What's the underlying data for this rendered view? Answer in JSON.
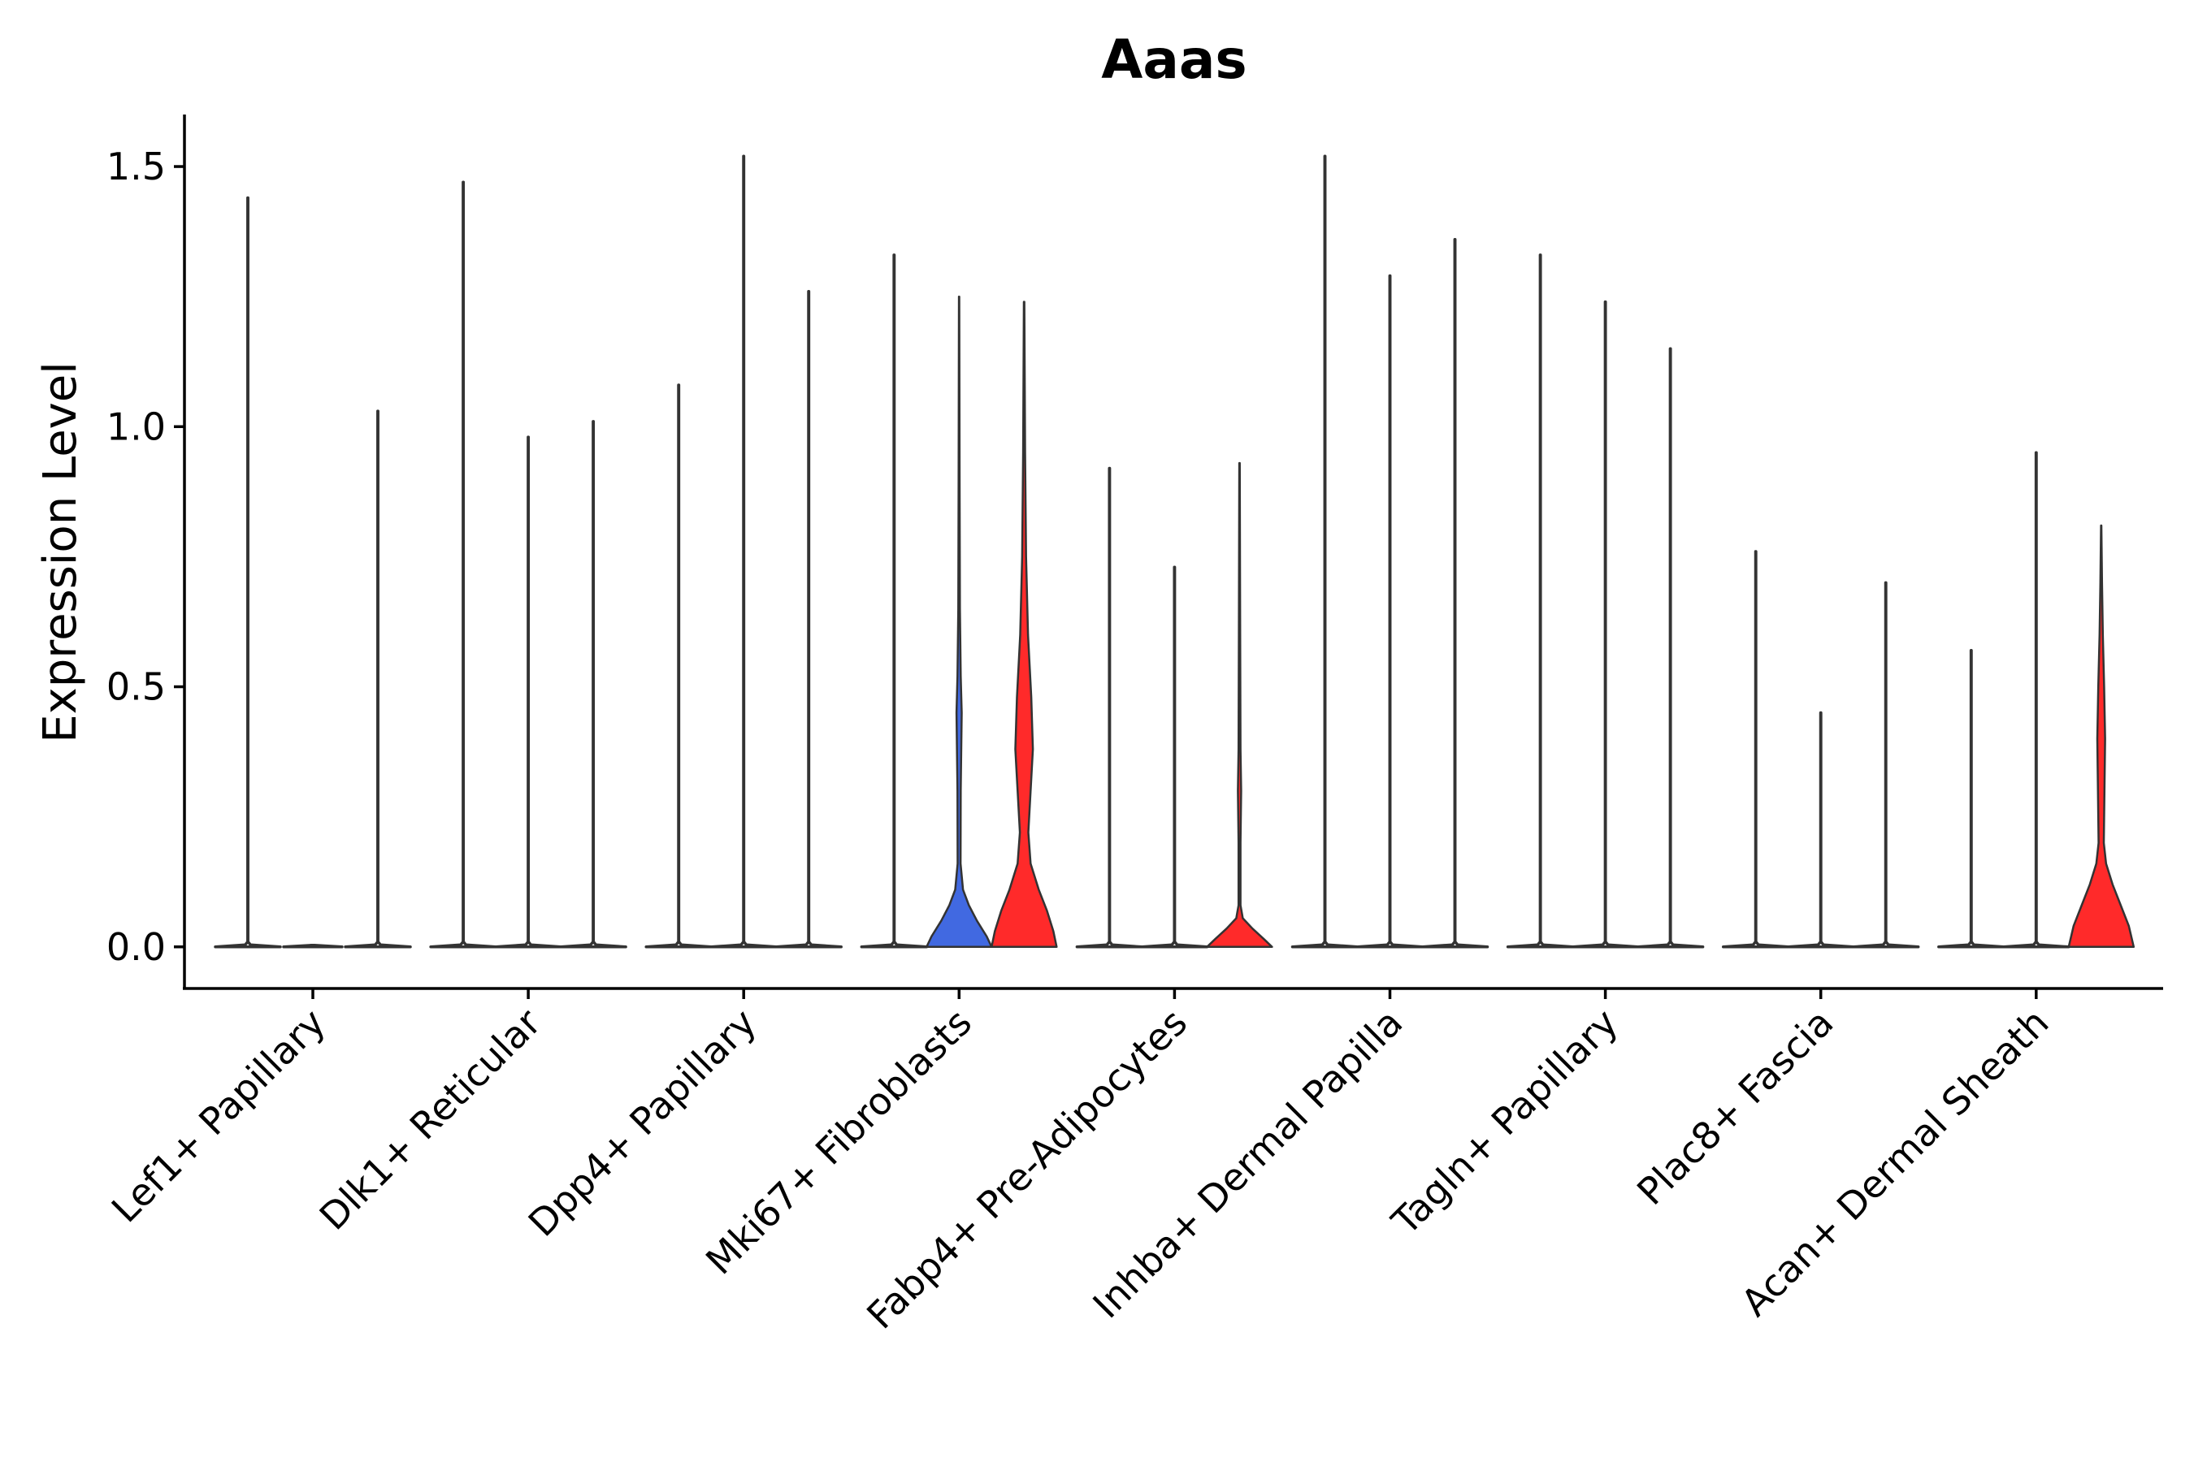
{
  "chart_data": {
    "type": "violin",
    "title": "Aaas",
    "ylabel": "Expression Level",
    "xlabel": "",
    "ylim": [
      -0.08,
      1.6
    ],
    "yticks": [
      0.0,
      0.5,
      1.0,
      1.5
    ],
    "ytick_labels": [
      "0.0",
      "0.5",
      "1.0",
      "1.5"
    ],
    "colors": {
      "axis": "#000000",
      "violin_stroke": "#333333",
      "blue_fill": "#4169E1",
      "red_fill": "#FF2A2A"
    },
    "categories": [
      "Lef1+ Papillary",
      "Dlk1+ Reticular",
      "Dpp4+ Papillary",
      "Mki67+ Fibroblasts",
      "Fabp4+ Pre-Adipocytes",
      "Inhba+ Dermal Papilla",
      "Tagln+ Papillary",
      "Plac8+ Fascia",
      "Acan+ Dermal Sheath"
    ],
    "groups": [
      {
        "category": "Lef1+ Papillary",
        "violins": [
          {
            "fill": "#FFFFFF",
            "max": 1.44,
            "profile": [
              [
                0,
                1.0
              ],
              [
                0.004,
                0.08
              ],
              [
                0.01,
                0.006
              ],
              [
                1.44,
                0.006
              ]
            ]
          },
          {
            "fill": "#FFFFFF",
            "max": 0.0,
            "profile": [
              [
                0,
                0.9
              ],
              [
                0.003,
                0.05
              ]
            ]
          },
          {
            "fill": "#FFFFFF",
            "max": 1.03,
            "profile": [
              [
                0,
                1.0
              ],
              [
                0.004,
                0.08
              ],
              [
                0.01,
                0.006
              ],
              [
                1.03,
                0.006
              ]
            ]
          }
        ]
      },
      {
        "category": "Dlk1+ Reticular",
        "violins": [
          {
            "fill": "#FFFFFF",
            "max": 1.47,
            "profile": [
              [
                0,
                1.0
              ],
              [
                0.004,
                0.08
              ],
              [
                0.01,
                0.006
              ],
              [
                1.47,
                0.006
              ]
            ]
          },
          {
            "fill": "#FFFFFF",
            "max": 0.98,
            "profile": [
              [
                0,
                1.0
              ],
              [
                0.004,
                0.08
              ],
              [
                0.01,
                0.006
              ],
              [
                0.98,
                0.006
              ]
            ]
          },
          {
            "fill": "#FFFFFF",
            "max": 1.01,
            "profile": [
              [
                0,
                1.0
              ],
              [
                0.004,
                0.08
              ],
              [
                0.01,
                0.006
              ],
              [
                1.01,
                0.006
              ]
            ]
          }
        ]
      },
      {
        "category": "Dpp4+ Papillary",
        "violins": [
          {
            "fill": "#FFFFFF",
            "max": 1.08,
            "profile": [
              [
                0,
                1.0
              ],
              [
                0.004,
                0.08
              ],
              [
                0.01,
                0.006
              ],
              [
                1.08,
                0.006
              ]
            ]
          },
          {
            "fill": "#FFFFFF",
            "max": 1.52,
            "profile": [
              [
                0,
                1.0
              ],
              [
                0.004,
                0.08
              ],
              [
                0.01,
                0.006
              ],
              [
                1.52,
                0.006
              ]
            ]
          },
          {
            "fill": "#FFFFFF",
            "max": 1.26,
            "profile": [
              [
                0,
                1.0
              ],
              [
                0.004,
                0.08
              ],
              [
                0.01,
                0.006
              ],
              [
                1.26,
                0.006
              ]
            ]
          }
        ]
      },
      {
        "category": "Mki67+ Fibroblasts",
        "violins": [
          {
            "fill": "#FFFFFF",
            "max": 1.33,
            "profile": [
              [
                0,
                1.0
              ],
              [
                0.004,
                0.08
              ],
              [
                0.01,
                0.006
              ],
              [
                1.33,
                0.006
              ]
            ]
          },
          {
            "fill": "#4169E1",
            "max": 1.25,
            "profile": [
              [
                0,
                1.0
              ],
              [
                0.02,
                0.85
              ],
              [
                0.05,
                0.55
              ],
              [
                0.08,
                0.3
              ],
              [
                0.11,
                0.12
              ],
              [
                0.16,
                0.045
              ],
              [
                0.3,
                0.05
              ],
              [
                0.45,
                0.08
              ],
              [
                0.52,
                0.05
              ],
              [
                0.65,
                0.025
              ],
              [
                0.9,
                0.015
              ],
              [
                1.25,
                0.006
              ]
            ]
          },
          {
            "fill": "#FF2A2A",
            "max": 1.24,
            "profile": [
              [
                0,
                1.0
              ],
              [
                0.03,
                0.9
              ],
              [
                0.07,
                0.7
              ],
              [
                0.11,
                0.45
              ],
              [
                0.16,
                0.2
              ],
              [
                0.22,
                0.13
              ],
              [
                0.3,
                0.2
              ],
              [
                0.38,
                0.27
              ],
              [
                0.48,
                0.22
              ],
              [
                0.6,
                0.12
              ],
              [
                0.75,
                0.06
              ],
              [
                0.95,
                0.03
              ],
              [
                1.24,
                0.008
              ]
            ]
          }
        ]
      },
      {
        "category": "Fabp4+ Pre-Adipocytes",
        "violins": [
          {
            "fill": "#FFFFFF",
            "max": 0.92,
            "profile": [
              [
                0,
                1.0
              ],
              [
                0.004,
                0.08
              ],
              [
                0.01,
                0.006
              ],
              [
                0.92,
                0.006
              ]
            ]
          },
          {
            "fill": "#FFFFFF",
            "max": 0.73,
            "profile": [
              [
                0,
                1.0
              ],
              [
                0.004,
                0.08
              ],
              [
                0.01,
                0.006
              ],
              [
                0.73,
                0.006
              ]
            ]
          },
          {
            "fill": "#FF2A2A",
            "max": 0.93,
            "profile": [
              [
                0,
                1.0
              ],
              [
                0.015,
                0.75
              ],
              [
                0.035,
                0.4
              ],
              [
                0.055,
                0.1
              ],
              [
                0.08,
                0.03
              ],
              [
                0.2,
                0.03
              ],
              [
                0.3,
                0.05
              ],
              [
                0.38,
                0.03
              ],
              [
                0.6,
                0.02
              ],
              [
                0.93,
                0.008
              ]
            ]
          }
        ]
      },
      {
        "category": "Inhba+ Dermal Papilla",
        "violins": [
          {
            "fill": "#FFFFFF",
            "max": 1.52,
            "profile": [
              [
                0,
                1.0
              ],
              [
                0.004,
                0.08
              ],
              [
                0.01,
                0.006
              ],
              [
                1.52,
                0.006
              ]
            ]
          },
          {
            "fill": "#FFFFFF",
            "max": 1.29,
            "profile": [
              [
                0,
                1.0
              ],
              [
                0.004,
                0.08
              ],
              [
                0.01,
                0.006
              ],
              [
                1.29,
                0.006
              ]
            ]
          },
          {
            "fill": "#FFFFFF",
            "max": 1.36,
            "profile": [
              [
                0,
                1.0
              ],
              [
                0.004,
                0.08
              ],
              [
                0.01,
                0.006
              ],
              [
                1.36,
                0.006
              ]
            ]
          }
        ]
      },
      {
        "category": "Tagln+ Papillary",
        "violins": [
          {
            "fill": "#FFFFFF",
            "max": 1.33,
            "profile": [
              [
                0,
                1.0
              ],
              [
                0.004,
                0.08
              ],
              [
                0.01,
                0.006
              ],
              [
                1.33,
                0.006
              ]
            ]
          },
          {
            "fill": "#FFFFFF",
            "max": 1.24,
            "profile": [
              [
                0,
                1.0
              ],
              [
                0.004,
                0.08
              ],
              [
                0.01,
                0.006
              ],
              [
                1.24,
                0.006
              ]
            ]
          },
          {
            "fill": "#FFFFFF",
            "max": 1.15,
            "profile": [
              [
                0,
                1.0
              ],
              [
                0.004,
                0.08
              ],
              [
                0.01,
                0.006
              ],
              [
                1.15,
                0.006
              ]
            ]
          }
        ]
      },
      {
        "category": "Plac8+ Fascia",
        "violins": [
          {
            "fill": "#FFFFFF",
            "max": 0.76,
            "profile": [
              [
                0,
                1.0
              ],
              [
                0.004,
                0.08
              ],
              [
                0.01,
                0.006
              ],
              [
                0.76,
                0.006
              ]
            ]
          },
          {
            "fill": "#FFFFFF",
            "max": 0.45,
            "profile": [
              [
                0,
                1.0
              ],
              [
                0.004,
                0.08
              ],
              [
                0.01,
                0.006
              ],
              [
                0.45,
                0.006
              ]
            ]
          },
          {
            "fill": "#FFFFFF",
            "max": 0.7,
            "profile": [
              [
                0,
                1.0
              ],
              [
                0.004,
                0.08
              ],
              [
                0.01,
                0.006
              ],
              [
                0.7,
                0.006
              ]
            ]
          }
        ]
      },
      {
        "category": "Acan+ Dermal Sheath",
        "violins": [
          {
            "fill": "#FFFFFF",
            "max": 0.57,
            "profile": [
              [
                0,
                1.0
              ],
              [
                0.004,
                0.08
              ],
              [
                0.01,
                0.006
              ],
              [
                0.57,
                0.006
              ]
            ]
          },
          {
            "fill": "#FFFFFF",
            "max": 0.95,
            "profile": [
              [
                0,
                1.0
              ],
              [
                0.004,
                0.08
              ],
              [
                0.01,
                0.006
              ],
              [
                0.95,
                0.006
              ]
            ]
          },
          {
            "fill": "#FF2A2A",
            "max": 0.81,
            "profile": [
              [
                0,
                1.0
              ],
              [
                0.04,
                0.85
              ],
              [
                0.08,
                0.6
              ],
              [
                0.12,
                0.35
              ],
              [
                0.16,
                0.15
              ],
              [
                0.2,
                0.08
              ],
              [
                0.3,
                0.1
              ],
              [
                0.4,
                0.12
              ],
              [
                0.5,
                0.09
              ],
              [
                0.6,
                0.05
              ],
              [
                0.7,
                0.025
              ],
              [
                0.81,
                0.006
              ]
            ]
          }
        ]
      }
    ]
  }
}
